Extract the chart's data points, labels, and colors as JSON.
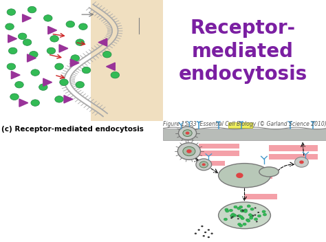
{
  "title": "Receptor-\nmediated\nendocytosis",
  "title_color": "#7B1FA2",
  "title_fontsize": 20,
  "title_fontweight": "bold",
  "subtitle": "(c) Receptor-mediated endocytosis",
  "subtitle_fontsize": 7.5,
  "subtitle_fontweight": "bold",
  "fig_caption": "Figure 15-33  Essential Cell Biology (© Garland Science 2010)",
  "fig_caption_fontsize": 5.5,
  "background_color": "#ffffff",
  "left_panel_bg": "#c8e4f0",
  "left_panel_bg2": "#f0dfc0",
  "pink_rect_color": "#f4a0a8",
  "yellow_rect_color": "#f0f060",
  "gray_cell_color": "#b8bcb8",
  "green_dot_color": "#33bb55",
  "purple_triangle_color": "#993399",
  "red_arrow_color": "#cc2222",
  "blue_receptor_color": "#4499cc",
  "membrane_color": "#aaaaaa",
  "vesicle_outer": "#c8ccc8",
  "vesicle_inner": "#a8bca8",
  "endosome_color": "#b8c8b8",
  "lyso_color": "#c8d8c8",
  "red_dot_color": "#dd4444"
}
